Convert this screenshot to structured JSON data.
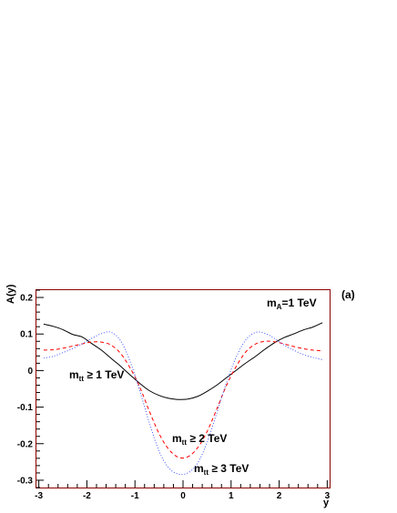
{
  "chart_data": {
    "type": "line",
    "xlabel": "y",
    "ylabel": "A(y)",
    "panel_label": "(a)",
    "xlim": [
      -3.05,
      3.05
    ],
    "ylim": [
      -0.32,
      0.22
    ],
    "x_ticks": [
      -3,
      -2,
      -1,
      0,
      1,
      2,
      3
    ],
    "x_tick_labels": [
      "-3",
      "-2",
      "-1",
      "0",
      "1",
      "2",
      "3"
    ],
    "y_ticks": [
      -0.3,
      -0.2,
      -0.1,
      0,
      0.1,
      0.2
    ],
    "y_tick_labels": [
      "-0.3",
      "-0.2",
      "-0.1",
      "0",
      "0.1",
      "0.2"
    ],
    "frame_color": "#8b0000",
    "annotations": {
      "mass": {
        "main": "m",
        "sub": "A",
        "rest": "=1 TeV"
      },
      "cut1": {
        "main": "m",
        "sub": "tt",
        "rest": " ≥ 1 TeV"
      },
      "cut2": {
        "main": "m",
        "sub": "tt",
        "rest": " ≥ 2 TeV"
      },
      "cut3": {
        "main": "m",
        "sub": "tt",
        "rest": " ≥ 3 TeV"
      }
    },
    "series": [
      {
        "key": "cut1",
        "color": "#000000",
        "dash": "",
        "x": [
          -2.9,
          -2.7,
          -2.5,
          -2.3,
          -2.1,
          -1.9,
          -1.7,
          -1.5,
          -1.3,
          -1.1,
          -0.9,
          -0.7,
          -0.5,
          -0.3,
          -0.1,
          0.1,
          0.3,
          0.5,
          0.7,
          0.9,
          1.1,
          1.3,
          1.5,
          1.7,
          1.9,
          2.1,
          2.3,
          2.5,
          2.7,
          2.9
        ],
        "y": [
          0.127,
          0.121,
          0.112,
          0.099,
          0.092,
          0.074,
          0.056,
          0.034,
          0.012,
          -0.012,
          -0.035,
          -0.055,
          -0.068,
          -0.076,
          -0.079,
          -0.078,
          -0.071,
          -0.057,
          -0.04,
          -0.02,
          0.0,
          0.02,
          0.038,
          0.058,
          0.076,
          0.09,
          0.1,
          0.111,
          0.119,
          0.131
        ]
      },
      {
        "key": "cut2",
        "color": "#ff0000",
        "dash": "4,3",
        "x": [
          -2.9,
          -2.7,
          -2.5,
          -2.3,
          -2.1,
          -1.9,
          -1.7,
          -1.5,
          -1.3,
          -1.1,
          -0.9,
          -0.7,
          -0.5,
          -0.3,
          -0.1,
          0.1,
          0.3,
          0.5,
          0.7,
          0.9,
          1.1,
          1.3,
          1.5,
          1.7,
          1.9,
          2.1,
          2.3,
          2.5,
          2.7,
          2.9
        ],
        "y": [
          0.056,
          0.057,
          0.061,
          0.067,
          0.073,
          0.078,
          0.078,
          0.07,
          0.047,
          0.007,
          -0.045,
          -0.111,
          -0.172,
          -0.215,
          -0.237,
          -0.236,
          -0.212,
          -0.167,
          -0.106,
          -0.042,
          0.01,
          0.05,
          0.072,
          0.08,
          0.079,
          0.073,
          0.066,
          0.06,
          0.056,
          0.054
        ]
      },
      {
        "key": "cut3",
        "color": "#3c50ff",
        "dash": "1,2",
        "x": [
          -2.9,
          -2.7,
          -2.5,
          -2.3,
          -2.1,
          -1.9,
          -1.7,
          -1.5,
          -1.3,
          -1.1,
          -0.9,
          -0.7,
          -0.5,
          -0.3,
          -0.1,
          0.1,
          0.3,
          0.5,
          0.7,
          0.9,
          1.1,
          1.3,
          1.5,
          1.7,
          1.9,
          2.1,
          2.3,
          2.5,
          2.7,
          2.9
        ],
        "y": [
          0.034,
          0.039,
          0.049,
          0.06,
          0.073,
          0.088,
          0.101,
          0.105,
          0.082,
          0.025,
          -0.055,
          -0.143,
          -0.22,
          -0.266,
          -0.283,
          -0.28,
          -0.254,
          -0.197,
          -0.117,
          -0.035,
          0.035,
          0.083,
          0.104,
          0.102,
          0.088,
          0.07,
          0.056,
          0.044,
          0.036,
          0.03
        ]
      }
    ]
  }
}
